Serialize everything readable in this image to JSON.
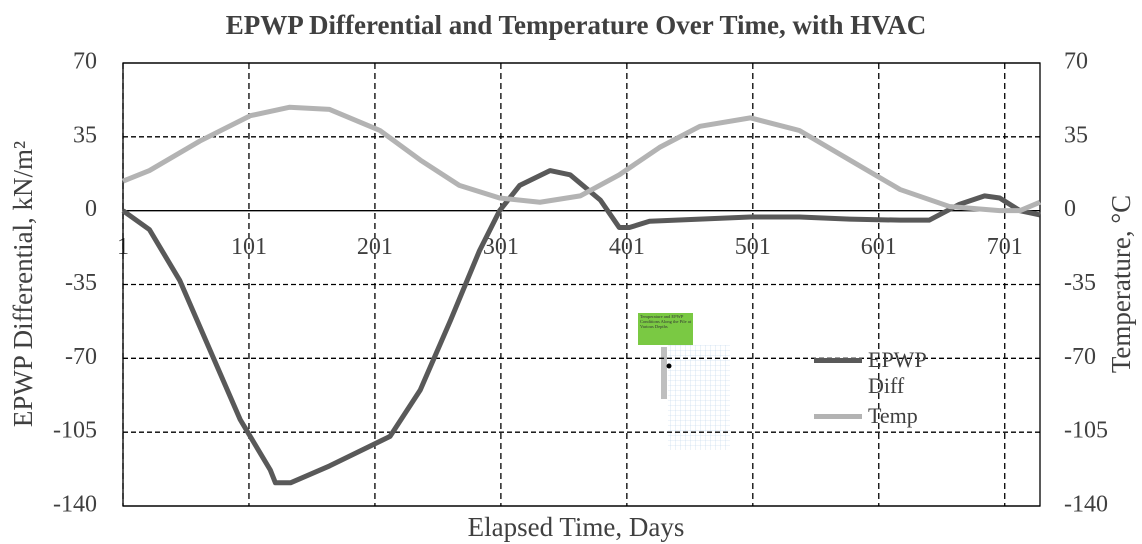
{
  "chart_data": {
    "type": "line",
    "title": "EPWP Differential and Temperature Over Time, with HVAC",
    "x_label": "Elapsed Time, Days",
    "y_label": "EPWP Differential,  kN/m²",
    "y2_label": "Temperature, °C",
    "xlim": [
      1,
      729
    ],
    "xticks": [
      1,
      101,
      201,
      301,
      401,
      501,
      601,
      701
    ],
    "ylim": [
      -140,
      70
    ],
    "yticks": [
      -140,
      -105,
      -70,
      -35,
      0,
      35,
      70
    ],
    "y2lim": [
      -140,
      70
    ],
    "y2ticks": [
      -140,
      -105,
      -70,
      -35,
      0,
      35,
      70
    ],
    "grid": true,
    "inset_caption": "Temperature and EPWP Conditions Along the Pile at Various Depths",
    "series": [
      {
        "name": "EPWP Diff",
        "color": "#595959",
        "x": [
          1,
          22,
          46,
          70,
          94,
          118,
          122,
          134,
          165,
          213,
          237,
          261,
          284,
          300,
          316,
          340,
          356,
          380,
          395,
          403,
          419,
          459,
          499,
          538,
          578,
          618,
          641,
          665,
          685,
          697,
          713,
          729
        ],
        "values": [
          0,
          -9,
          -33,
          -66,
          -99,
          -123,
          -129,
          -129,
          -121,
          -107,
          -85,
          -52,
          -19,
          0,
          12,
          19,
          17,
          5,
          -8,
          -8,
          -5,
          -4,
          -3,
          -3,
          -4,
          -4.5,
          -4.5,
          3,
          7,
          6,
          0,
          -2
        ]
      },
      {
        "name": "Temp",
        "color": "#b3b3b3",
        "axis": "y2",
        "x": [
          1,
          22,
          62,
          102,
          133,
          165,
          205,
          237,
          268,
          300,
          332,
          364,
          395,
          427,
          459,
          499,
          538,
          578,
          618,
          657,
          697,
          713,
          729
        ],
        "values": [
          14,
          19,
          33,
          45,
          49,
          48,
          38,
          24,
          12,
          6,
          4,
          7,
          17,
          30,
          40,
          44,
          38,
          24,
          10,
          2,
          0,
          0,
          4
        ]
      }
    ]
  }
}
